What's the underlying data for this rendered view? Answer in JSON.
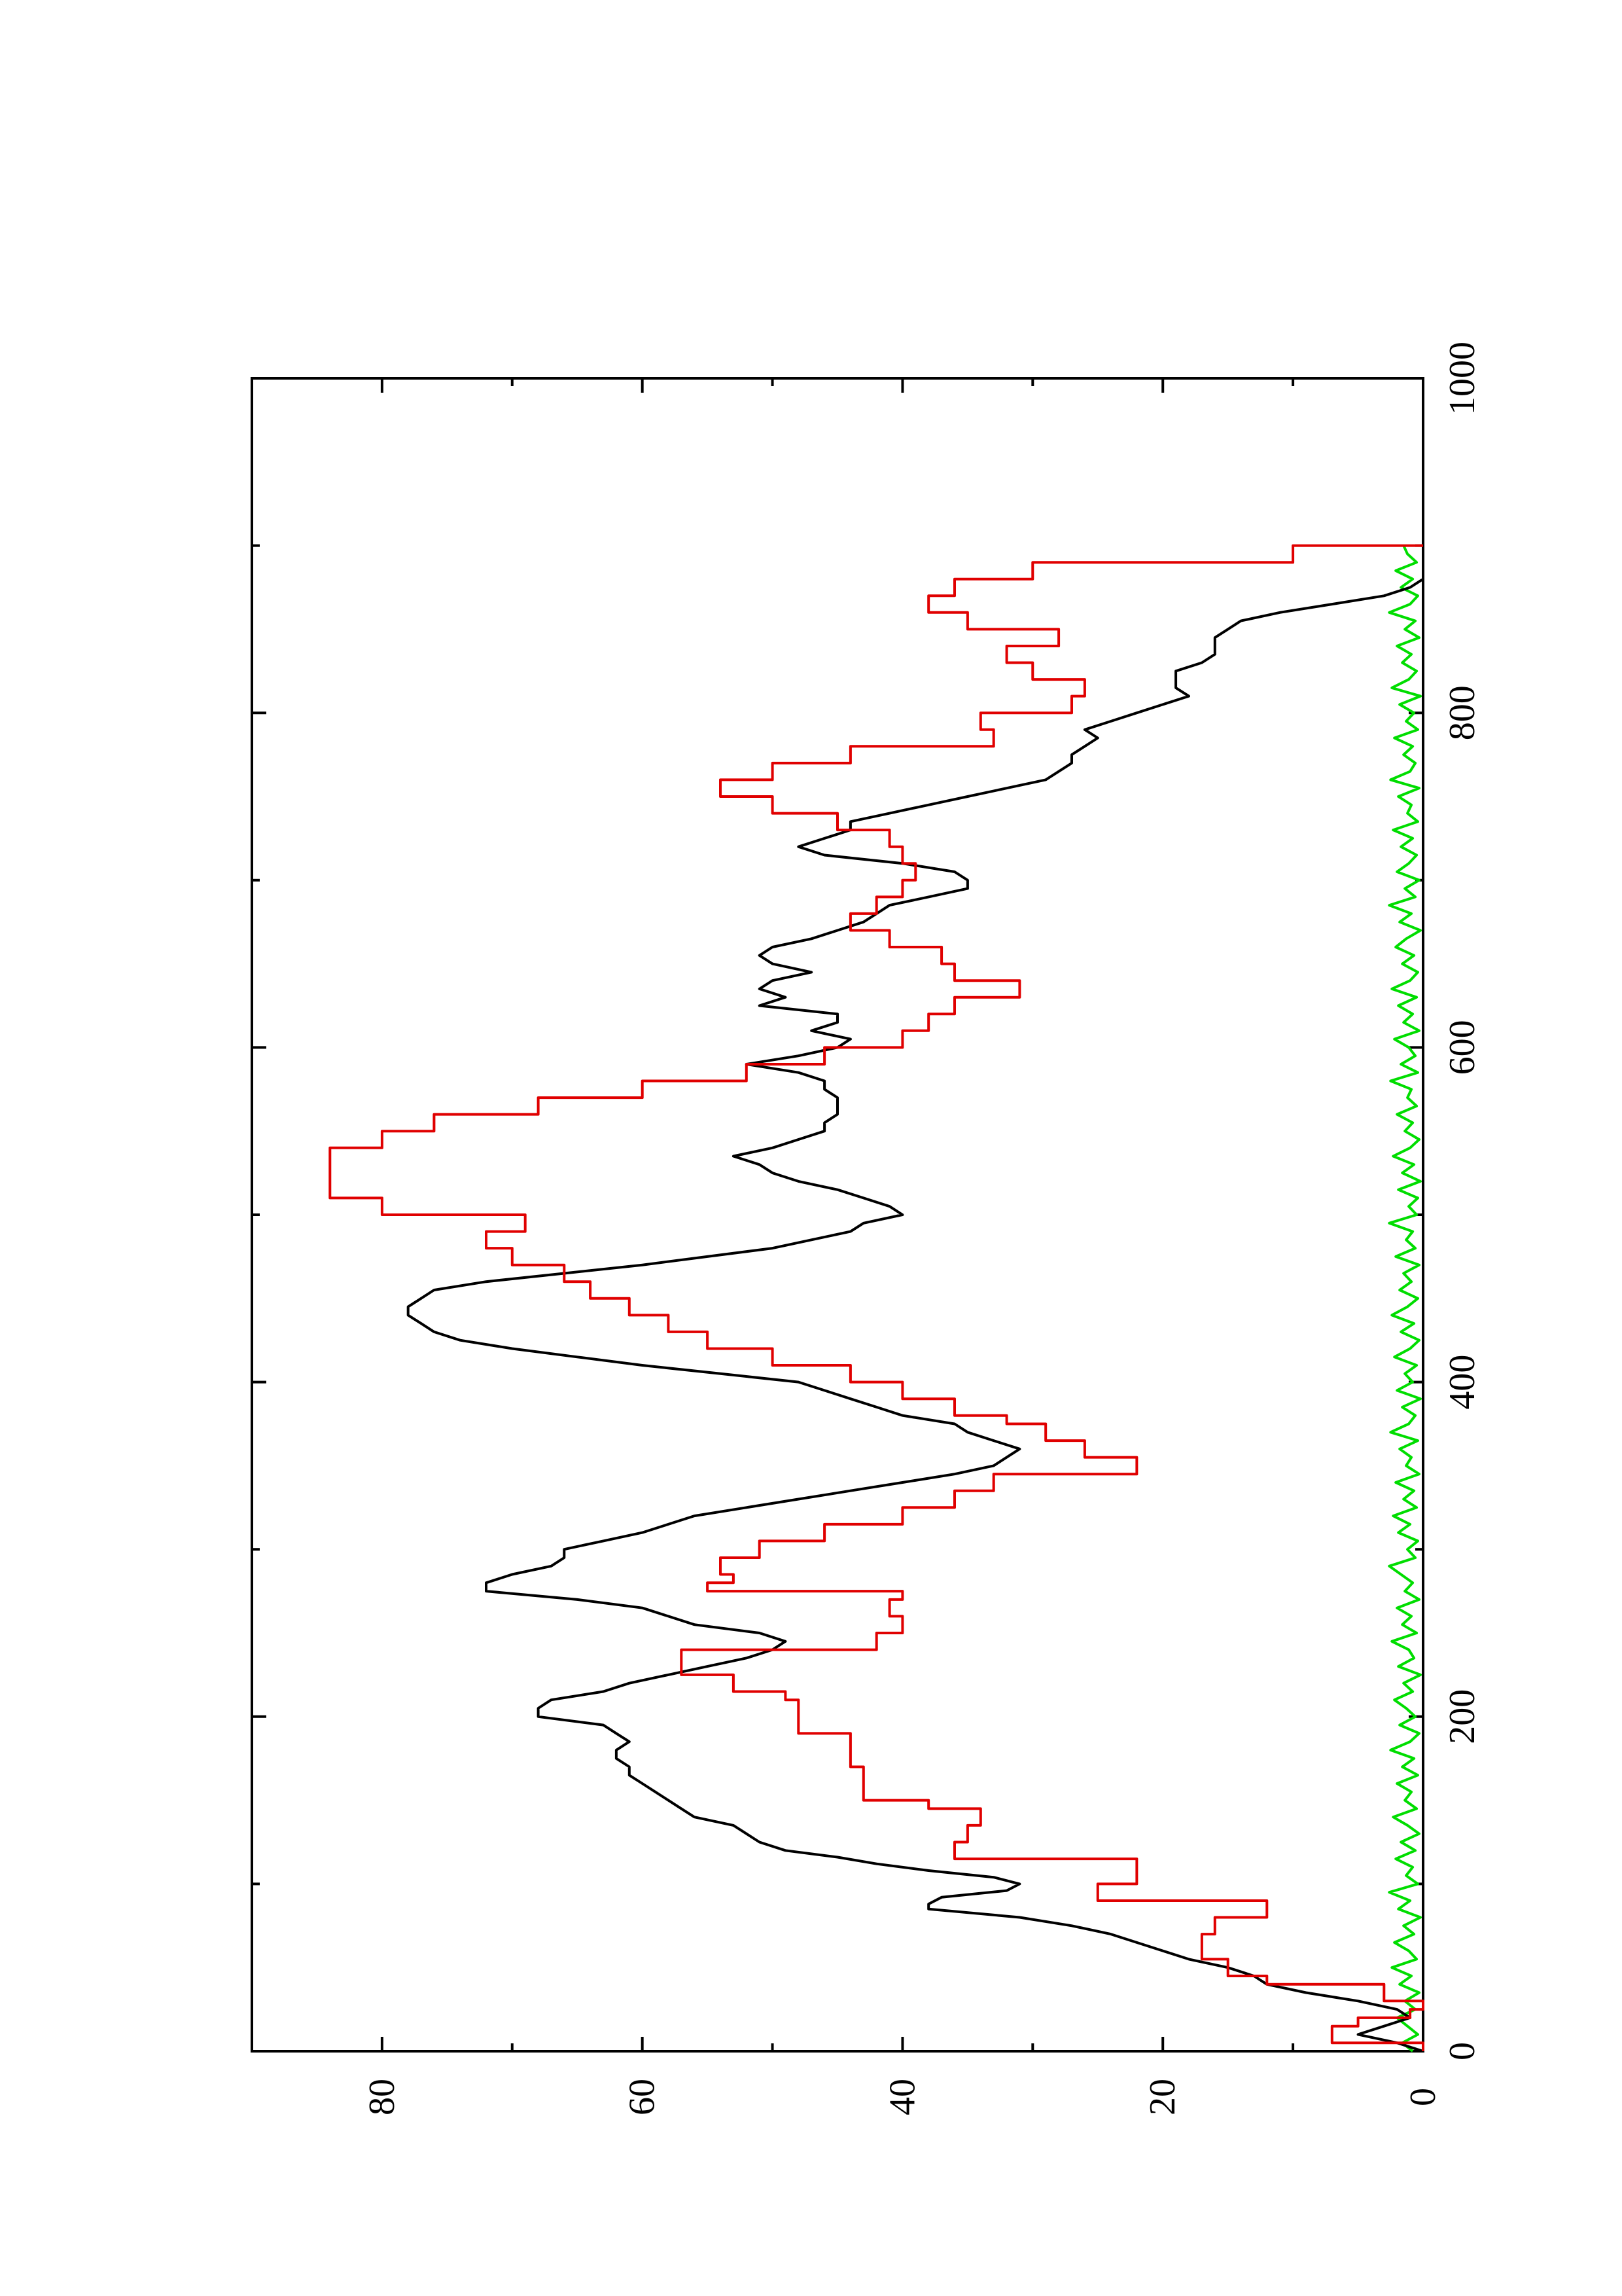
{
  "colors": {
    "background": "#ffffff",
    "axis": "#000000",
    "series_black": "#000000",
    "series_red": "#e00000",
    "series_green": "#00dd00"
  },
  "chart_data": {
    "type": "line",
    "orientation": "rotated-90-ccw",
    "title": "",
    "xlabel": "",
    "ylabel": "",
    "xlim": [
      0,
      1000
    ],
    "ylim": [
      0,
      90
    ],
    "x_ticks": [
      "0",
      "200",
      "400",
      "600",
      "800",
      "1000"
    ],
    "y_ticks": [
      "0",
      "20",
      "40",
      "60",
      "80"
    ],
    "grid": false,
    "legend": "none",
    "series": [
      {
        "color": "#000000",
        "style": "line",
        "x": [
          0,
          5,
          10,
          15,
          20,
          25,
          30,
          35,
          40,
          45,
          50,
          55,
          60,
          65,
          70,
          75,
          80,
          85,
          88,
          92,
          96,
          100,
          104,
          108,
          112,
          116,
          120,
          125,
          130,
          135,
          140,
          145,
          150,
          155,
          160,
          165,
          170,
          175,
          180,
          185,
          190,
          195,
          200,
          205,
          210,
          215,
          220,
          225,
          230,
          235,
          240,
          245,
          250,
          255,
          260,
          265,
          270,
          275,
          280,
          285,
          290,
          295,
          300,
          305,
          310,
          315,
          320,
          325,
          330,
          335,
          340,
          345,
          350,
          355,
          360,
          365,
          370,
          375,
          380,
          385,
          390,
          395,
          400,
          405,
          410,
          415,
          420,
          425,
          430,
          435,
          440,
          445,
          450,
          455,
          460,
          465,
          470,
          475,
          480,
          485,
          490,
          495,
          500,
          505,
          510,
          515,
          520,
          525,
          530,
          535,
          540,
          545,
          550,
          555,
          560,
          565,
          570,
          575,
          580,
          585,
          590,
          595,
          600,
          605,
          610,
          615,
          620,
          625,
          630,
          635,
          640,
          645,
          650,
          655,
          660,
          665,
          670,
          675,
          680,
          685,
          690,
          695,
          700,
          705,
          710,
          715,
          720,
          725,
          730,
          735,
          740,
          745,
          750,
          755,
          760,
          765,
          770,
          775,
          780,
          785,
          790,
          795,
          800,
          805,
          810,
          815,
          820,
          825,
          830,
          835,
          840,
          845,
          850,
          855,
          860,
          865,
          870,
          875,
          880,
          885,
          890,
          895,
          900
        ],
        "y": [
          0,
          2,
          5,
          3,
          1,
          2,
          5,
          9,
          12,
          13,
          15,
          18,
          20,
          22,
          24,
          27,
          31,
          38,
          38,
          37,
          32,
          31,
          33,
          38,
          42,
          45,
          49,
          51,
          52,
          53,
          56,
          57,
          58,
          59,
          60,
          61,
          61,
          62,
          62,
          61,
          62,
          63,
          68,
          68,
          67,
          63,
          61,
          58,
          55,
          52,
          50,
          49,
          51,
          56,
          58,
          60,
          65,
          72,
          72,
          70,
          67,
          66,
          66,
          63,
          60,
          58,
          56,
          52,
          48,
          44,
          40,
          36,
          33,
          32,
          31,
          33,
          35,
          36,
          40,
          42,
          44,
          46,
          48,
          54,
          60,
          65,
          70,
          74,
          76,
          77,
          78,
          78,
          77,
          76,
          72,
          66,
          60,
          55,
          50,
          47,
          44,
          43,
          40,
          41,
          43,
          45,
          48,
          50,
          51,
          53,
          50,
          48,
          46,
          46,
          45,
          45,
          45,
          46,
          46,
          48,
          52,
          48,
          45,
          44,
          47,
          45,
          45,
          51,
          49,
          51,
          50,
          47,
          50,
          51,
          50,
          47,
          45,
          43,
          42,
          41,
          38,
          35,
          35,
          36,
          40,
          46,
          48,
          46,
          44,
          44,
          41,
          38,
          35,
          32,
          29,
          28,
          27,
          27,
          26,
          25,
          26,
          24,
          22,
          20,
          18,
          19,
          19,
          19,
          17,
          16,
          16,
          16,
          15,
          14,
          11,
          7,
          3,
          1,
          0,
          0,
          0,
          0,
          0
        ]
      },
      {
        "color": "#e00000",
        "style": "steps",
        "x": [
          0,
          5,
          10,
          15,
          20,
          25,
          30,
          40,
          45,
          55,
          70,
          80,
          90,
          100,
          115,
          125,
          135,
          145,
          150,
          170,
          180,
          190,
          200,
          210,
          215,
          225,
          240,
          250,
          260,
          270,
          275,
          280,
          285,
          295,
          305,
          315,
          325,
          335,
          345,
          355,
          365,
          375,
          380,
          390,
          400,
          410,
          420,
          430,
          440,
          450,
          460,
          470,
          480,
          490,
          500,
          510,
          520,
          530,
          540,
          550,
          560,
          570,
          580,
          590,
          600,
          610,
          620,
          630,
          640,
          650,
          660,
          670,
          680,
          690,
          700,
          710,
          720,
          730,
          740,
          750,
          760,
          770,
          780,
          790,
          800,
          810,
          820,
          830,
          840,
          850,
          860,
          870,
          880,
          890,
          900
        ],
        "y": [
          0,
          7,
          7,
          5,
          1,
          0,
          3,
          12,
          15,
          17,
          16,
          12,
          25,
          22,
          36,
          35,
          34,
          38,
          43,
          44,
          44,
          48,
          48,
          49,
          53,
          57,
          42,
          40,
          41,
          40,
          55,
          53,
          54,
          51,
          46,
          40,
          36,
          33,
          22,
          26,
          29,
          32,
          36,
          40,
          44,
          50,
          55,
          58,
          61,
          64,
          66,
          70,
          72,
          69,
          80,
          84,
          84,
          84,
          80,
          76,
          68,
          60,
          52,
          46,
          40,
          38,
          36,
          31,
          36,
          37,
          41,
          44,
          42,
          40,
          39,
          40,
          41,
          45,
          50,
          54,
          50,
          44,
          33,
          34,
          27,
          26,
          30,
          32,
          28,
          35,
          38,
          36,
          30,
          10,
          0
        ]
      },
      {
        "color": "#00dd00",
        "style": "line",
        "x": [
          0,
          5,
          10,
          15,
          20,
          25,
          30,
          35,
          40,
          45,
          50,
          55,
          60,
          65,
          70,
          75,
          80,
          85,
          90,
          95,
          100,
          105,
          110,
          115,
          120,
          125,
          130,
          135,
          140,
          145,
          150,
          155,
          160,
          165,
          170,
          175,
          180,
          185,
          190,
          195,
          200,
          205,
          210,
          215,
          220,
          225,
          230,
          235,
          240,
          245,
          250,
          255,
          260,
          265,
          270,
          275,
          280,
          285,
          290,
          295,
          300,
          305,
          310,
          315,
          320,
          325,
          330,
          335,
          340,
          345,
          350,
          355,
          360,
          365,
          370,
          375,
          380,
          385,
          390,
          395,
          400,
          405,
          410,
          415,
          420,
          425,
          430,
          435,
          440,
          445,
          450,
          455,
          460,
          465,
          470,
          475,
          480,
          485,
          490,
          495,
          500,
          505,
          510,
          515,
          520,
          525,
          530,
          535,
          540,
          545,
          550,
          555,
          560,
          565,
          570,
          575,
          580,
          585,
          590,
          595,
          600,
          605,
          610,
          615,
          620,
          625,
          630,
          635,
          640,
          645,
          650,
          655,
          660,
          665,
          670,
          675,
          680,
          685,
          690,
          695,
          700,
          705,
          710,
          715,
          720,
          725,
          730,
          735,
          740,
          745,
          750,
          755,
          760,
          765,
          770,
          775,
          780,
          785,
          790,
          795,
          800,
          805,
          810,
          815,
          820,
          825,
          830,
          835,
          840,
          845,
          850,
          855,
          860,
          865,
          870,
          875,
          880,
          885,
          890,
          895,
          900
        ],
        "y": [
          0.8,
          1.6,
          0.4,
          1.2,
          2.0,
          0.6,
          1.4,
          0.3,
          1.8,
          0.9,
          2.4,
          0.5,
          1.1,
          2.2,
          0.7,
          1.5,
          0.2,
          1.9,
          1.0,
          2.6,
          0.4,
          1.3,
          0.8,
          2.1,
          0.6,
          1.7,
          0.3,
          1.2,
          2.3,
          0.5,
          1.4,
          0.9,
          2.0,
          0.4,
          1.6,
          0.7,
          2.5,
          1.0,
          0.3,
          1.8,
          0.6,
          1.3,
          2.2,
          0.8,
          1.5,
          0.2,
          1.9,
          0.7,
          1.1,
          2.4,
          0.5,
          1.6,
          0.9,
          2.0,
          0.3,
          1.4,
          0.8,
          1.7,
          2.6,
          0.6,
          1.2,
          0.4,
          1.9,
          1.0,
          2.3,
          0.5,
          1.5,
          0.7,
          2.1,
          0.3,
          1.3,
          0.9,
          1.8,
          0.4,
          2.5,
          1.1,
          0.6,
          1.6,
          0.2,
          2.0,
          0.8,
          1.4,
          0.5,
          2.2,
          1.0,
          0.3,
          1.7,
          0.7,
          2.4,
          1.2,
          0.4,
          1.8,
          0.9,
          1.5,
          0.3,
          2.1,
          0.6,
          1.3,
          0.8,
          2.6,
          0.5,
          1.1,
          0.4,
          1.9,
          0.2,
          1.6,
          0.7,
          2.3,
          1.0,
          0.3,
          1.4,
          0.8,
          2.0,
          0.5,
          1.2,
          0.9,
          2.5,
          0.4,
          1.7,
          0.6,
          1.1,
          2.2,
          0.3,
          1.5,
          0.8,
          1.9,
          0.5,
          2.4,
          1.0,
          0.4,
          1.6,
          0.7,
          2.1,
          1.3,
          0.2,
          1.8,
          0.9,
          2.6,
          0.6,
          1.4,
          0.3,
          2.0,
          1.1,
          0.5,
          1.7,
          0.8,
          2.3,
          0.4,
          1.2,
          0.9,
          1.9,
          0.3,
          2.5,
          1.0,
          0.6,
          1.5,
          0.8,
          2.2,
          0.4,
          1.3,
          0.7,
          1.8,
          0.2,
          2.4,
          1.1,
          0.5,
          1.6,
          0.9,
          2.0,
          0.3,
          1.4,
          0.6,
          2.6,
          1.0,
          0.4,
          1.7,
          0.8,
          2.1,
          0.5,
          1.2,
          1.5
        ]
      }
    ]
  }
}
